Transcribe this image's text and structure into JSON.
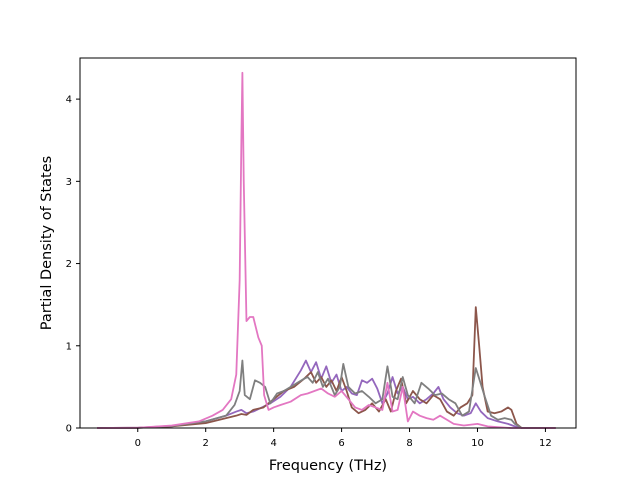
{
  "chart_data": {
    "type": "line",
    "title": "",
    "xlabel": "Frequency (THz)",
    "ylabel": "Partial Density of States",
    "xlim": [
      -1.7,
      12.9
    ],
    "ylim": [
      0,
      4.5
    ],
    "xticks": [
      0,
      2,
      4,
      6,
      8,
      10,
      12
    ],
    "yticks": [
      0,
      1,
      2,
      3,
      4
    ],
    "grid": false,
    "legend": "none",
    "series": [
      {
        "color": "#9467bd",
        "points": [
          [
            -1.2,
            0
          ],
          [
            0,
            0.002
          ],
          [
            1,
            0.02
          ],
          [
            2,
            0.08
          ],
          [
            2.6,
            0.15
          ],
          [
            2.9,
            0.2
          ],
          [
            3.05,
            0.22
          ],
          [
            3.2,
            0.18
          ],
          [
            3.4,
            0.2
          ],
          [
            3.6,
            0.24
          ],
          [
            3.9,
            0.3
          ],
          [
            4.2,
            0.38
          ],
          [
            4.5,
            0.5
          ],
          [
            4.8,
            0.7
          ],
          [
            4.95,
            0.82
          ],
          [
            5.1,
            0.68
          ],
          [
            5.25,
            0.8
          ],
          [
            5.4,
            0.6
          ],
          [
            5.55,
            0.75
          ],
          [
            5.7,
            0.55
          ],
          [
            5.85,
            0.65
          ],
          [
            6.0,
            0.45
          ],
          [
            6.15,
            0.5
          ],
          [
            6.3,
            0.42
          ],
          [
            6.45,
            0.4
          ],
          [
            6.6,
            0.58
          ],
          [
            6.75,
            0.55
          ],
          [
            6.9,
            0.6
          ],
          [
            7.05,
            0.48
          ],
          [
            7.2,
            0.3
          ],
          [
            7.35,
            0.42
          ],
          [
            7.5,
            0.62
          ],
          [
            7.65,
            0.42
          ],
          [
            7.8,
            0.5
          ],
          [
            7.95,
            0.35
          ],
          [
            8.1,
            0.38
          ],
          [
            8.3,
            0.3
          ],
          [
            8.5,
            0.35
          ],
          [
            8.7,
            0.42
          ],
          [
            8.85,
            0.5
          ],
          [
            9.0,
            0.35
          ],
          [
            9.2,
            0.25
          ],
          [
            9.4,
            0.18
          ],
          [
            9.6,
            0.15
          ],
          [
            9.8,
            0.18
          ],
          [
            9.95,
            0.3
          ],
          [
            10.1,
            0.2
          ],
          [
            10.3,
            0.12
          ],
          [
            10.6,
            0.08
          ],
          [
            10.9,
            0.05
          ],
          [
            11.1,
            0.02
          ],
          [
            11.3,
            0
          ],
          [
            12.3,
            0
          ]
        ]
      },
      {
        "color": "#8c564b",
        "points": [
          [
            -1.2,
            0
          ],
          [
            0,
            0.002
          ],
          [
            1,
            0.02
          ],
          [
            2,
            0.06
          ],
          [
            2.6,
            0.12
          ],
          [
            2.9,
            0.15
          ],
          [
            3.05,
            0.17
          ],
          [
            3.2,
            0.16
          ],
          [
            3.4,
            0.22
          ],
          [
            3.7,
            0.25
          ],
          [
            4.0,
            0.35
          ],
          [
            4.3,
            0.45
          ],
          [
            4.6,
            0.5
          ],
          [
            4.9,
            0.6
          ],
          [
            5.1,
            0.68
          ],
          [
            5.25,
            0.55
          ],
          [
            5.4,
            0.62
          ],
          [
            5.55,
            0.5
          ],
          [
            5.7,
            0.58
          ],
          [
            5.85,
            0.45
          ],
          [
            6.0,
            0.62
          ],
          [
            6.15,
            0.45
          ],
          [
            6.3,
            0.25
          ],
          [
            6.5,
            0.18
          ],
          [
            6.7,
            0.22
          ],
          [
            6.9,
            0.3
          ],
          [
            7.1,
            0.2
          ],
          [
            7.3,
            0.35
          ],
          [
            7.45,
            0.2
          ],
          [
            7.6,
            0.45
          ],
          [
            7.75,
            0.6
          ],
          [
            7.9,
            0.3
          ],
          [
            8.1,
            0.45
          ],
          [
            8.3,
            0.35
          ],
          [
            8.5,
            0.3
          ],
          [
            8.7,
            0.4
          ],
          [
            8.9,
            0.35
          ],
          [
            9.1,
            0.2
          ],
          [
            9.3,
            0.15
          ],
          [
            9.5,
            0.25
          ],
          [
            9.7,
            0.3
          ],
          [
            9.85,
            0.4
          ],
          [
            9.95,
            1.47
          ],
          [
            10.05,
            1.0
          ],
          [
            10.15,
            0.5
          ],
          [
            10.3,
            0.2
          ],
          [
            10.5,
            0.18
          ],
          [
            10.7,
            0.2
          ],
          [
            10.9,
            0.25
          ],
          [
            11.0,
            0.22
          ],
          [
            11.15,
            0.05
          ],
          [
            11.3,
            0
          ],
          [
            12.3,
            0
          ]
        ]
      },
      {
        "color": "#7f7f7f",
        "points": [
          [
            -1.2,
            0
          ],
          [
            0,
            0.003
          ],
          [
            1,
            0.025
          ],
          [
            2,
            0.08
          ],
          [
            2.6,
            0.15
          ],
          [
            2.85,
            0.28
          ],
          [
            3.0,
            0.45
          ],
          [
            3.08,
            0.82
          ],
          [
            3.15,
            0.4
          ],
          [
            3.3,
            0.35
          ],
          [
            3.45,
            0.58
          ],
          [
            3.6,
            0.55
          ],
          [
            3.75,
            0.5
          ],
          [
            3.9,
            0.3
          ],
          [
            4.1,
            0.42
          ],
          [
            4.3,
            0.45
          ],
          [
            4.5,
            0.5
          ],
          [
            4.7,
            0.55
          ],
          [
            4.9,
            0.6
          ],
          [
            5.0,
            0.62
          ],
          [
            5.15,
            0.55
          ],
          [
            5.3,
            0.68
          ],
          [
            5.45,
            0.5
          ],
          [
            5.6,
            0.6
          ],
          [
            5.8,
            0.4
          ],
          [
            5.95,
            0.5
          ],
          [
            6.05,
            0.78
          ],
          [
            6.2,
            0.5
          ],
          [
            6.4,
            0.42
          ],
          [
            6.6,
            0.45
          ],
          [
            6.8,
            0.38
          ],
          [
            7.0,
            0.3
          ],
          [
            7.2,
            0.35
          ],
          [
            7.35,
            0.75
          ],
          [
            7.5,
            0.38
          ],
          [
            7.65,
            0.35
          ],
          [
            7.8,
            0.62
          ],
          [
            7.95,
            0.4
          ],
          [
            8.15,
            0.3
          ],
          [
            8.35,
            0.55
          ],
          [
            8.55,
            0.48
          ],
          [
            8.75,
            0.4
          ],
          [
            8.95,
            0.42
          ],
          [
            9.15,
            0.35
          ],
          [
            9.35,
            0.3
          ],
          [
            9.55,
            0.15
          ],
          [
            9.75,
            0.2
          ],
          [
            9.95,
            0.73
          ],
          [
            10.05,
            0.6
          ],
          [
            10.2,
            0.4
          ],
          [
            10.4,
            0.15
          ],
          [
            10.6,
            0.1
          ],
          [
            10.8,
            0.12
          ],
          [
            11.0,
            0.1
          ],
          [
            11.1,
            0.05
          ],
          [
            11.3,
            0
          ],
          [
            12.3,
            0
          ]
        ]
      },
      {
        "color": "#e377c2",
        "points": [
          [
            -1.2,
            0
          ],
          [
            0,
            0.003
          ],
          [
            1,
            0.03
          ],
          [
            1.8,
            0.08
          ],
          [
            2.2,
            0.15
          ],
          [
            2.5,
            0.22
          ],
          [
            2.75,
            0.35
          ],
          [
            2.9,
            0.65
          ],
          [
            3.0,
            1.8
          ],
          [
            3.05,
            3.5
          ],
          [
            3.08,
            4.32
          ],
          [
            3.12,
            3.0
          ],
          [
            3.2,
            1.3
          ],
          [
            3.3,
            1.35
          ],
          [
            3.4,
            1.35
          ],
          [
            3.55,
            1.1
          ],
          [
            3.65,
            1.0
          ],
          [
            3.72,
            0.4
          ],
          [
            3.85,
            0.22
          ],
          [
            4.0,
            0.25
          ],
          [
            4.2,
            0.28
          ],
          [
            4.5,
            0.32
          ],
          [
            4.8,
            0.4
          ],
          [
            5.0,
            0.42
          ],
          [
            5.2,
            0.45
          ],
          [
            5.4,
            0.48
          ],
          [
            5.6,
            0.42
          ],
          [
            5.8,
            0.38
          ],
          [
            6.0,
            0.45
          ],
          [
            6.2,
            0.35
          ],
          [
            6.4,
            0.25
          ],
          [
            6.6,
            0.22
          ],
          [
            6.8,
            0.28
          ],
          [
            7.0,
            0.25
          ],
          [
            7.2,
            0.22
          ],
          [
            7.35,
            0.55
          ],
          [
            7.5,
            0.2
          ],
          [
            7.65,
            0.22
          ],
          [
            7.8,
            0.5
          ],
          [
            7.95,
            0.08
          ],
          [
            8.1,
            0.2
          ],
          [
            8.3,
            0.15
          ],
          [
            8.5,
            0.12
          ],
          [
            8.7,
            0.1
          ],
          [
            8.9,
            0.15
          ],
          [
            9.1,
            0.1
          ],
          [
            9.3,
            0.05
          ],
          [
            9.6,
            0.03
          ],
          [
            10.0,
            0.05
          ],
          [
            10.3,
            0.02
          ],
          [
            10.6,
            0.01
          ],
          [
            11.0,
            0
          ],
          [
            12.3,
            0
          ]
        ]
      }
    ]
  }
}
